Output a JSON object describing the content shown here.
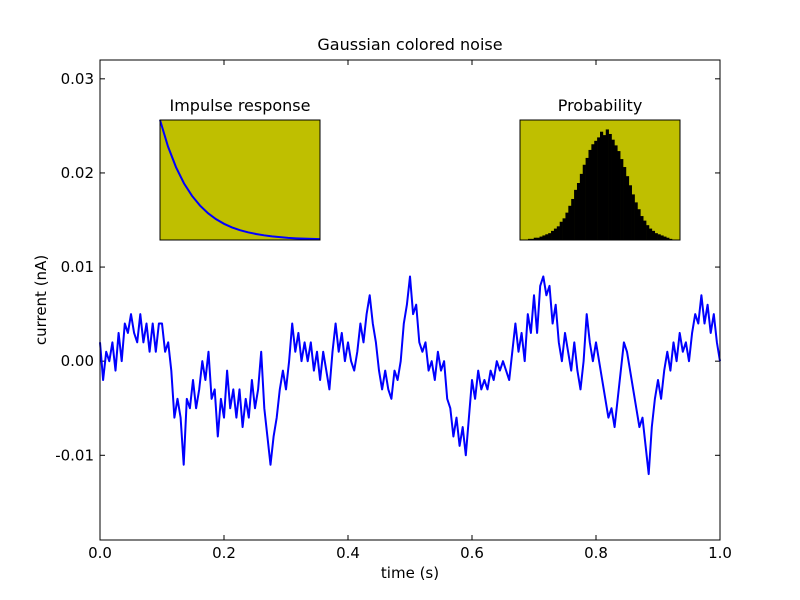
{
  "chart_data": [
    {
      "type": "line",
      "title": "Gaussian colored noise",
      "xlabel": "time (s)",
      "ylabel": "current (nA)",
      "xlim": [
        0.0,
        1.0
      ],
      "ylim": [
        -0.019,
        0.032
      ],
      "xticks": [
        0.0,
        0.2,
        0.4,
        0.6,
        0.8,
        1.0
      ],
      "xtick_labels": [
        "0.0",
        "0.2",
        "0.4",
        "0.6",
        "0.8",
        "1.0"
      ],
      "yticks": [
        -0.01,
        0.0,
        0.01,
        0.02,
        0.03
      ],
      "ytick_labels": [
        "-0.01",
        "0.00",
        "0.01",
        "0.02",
        "0.03"
      ],
      "grid": false,
      "series": [
        {
          "color": "#0000ff",
          "points": [
            [
              0.0,
              0.002
            ],
            [
              0.005,
              -0.002
            ],
            [
              0.01,
              0.001
            ],
            [
              0.015,
              0.0
            ],
            [
              0.02,
              0.002
            ],
            [
              0.025,
              -0.001
            ],
            [
              0.03,
              0.003
            ],
            [
              0.035,
              0.0
            ],
            [
              0.04,
              0.004
            ],
            [
              0.045,
              0.003
            ],
            [
              0.05,
              0.005
            ],
            [
              0.055,
              0.003
            ],
            [
              0.06,
              0.002
            ],
            [
              0.065,
              0.005
            ],
            [
              0.07,
              0.002
            ],
            [
              0.075,
              0.004
            ],
            [
              0.08,
              0.001
            ],
            [
              0.085,
              0.004
            ],
            [
              0.09,
              0.001
            ],
            [
              0.095,
              0.004
            ],
            [
              0.1,
              0.004
            ],
            [
              0.105,
              0.001
            ],
            [
              0.11,
              0.002
            ],
            [
              0.115,
              -0.001
            ],
            [
              0.12,
              -0.006
            ],
            [
              0.125,
              -0.004
            ],
            [
              0.13,
              -0.006
            ],
            [
              0.135,
              -0.011
            ],
            [
              0.14,
              -0.004
            ],
            [
              0.145,
              -0.005
            ],
            [
              0.15,
              -0.002
            ],
            [
              0.155,
              -0.005
            ],
            [
              0.16,
              -0.003
            ],
            [
              0.165,
              0.0
            ],
            [
              0.17,
              -0.002
            ],
            [
              0.175,
              0.001
            ],
            [
              0.18,
              -0.004
            ],
            [
              0.185,
              -0.003
            ],
            [
              0.19,
              -0.008
            ],
            [
              0.195,
              -0.004
            ],
            [
              0.2,
              -0.006
            ],
            [
              0.205,
              -0.001
            ],
            [
              0.21,
              -0.005
            ],
            [
              0.215,
              -0.003
            ],
            [
              0.22,
              -0.006
            ],
            [
              0.225,
              -0.003
            ],
            [
              0.23,
              -0.007
            ],
            [
              0.235,
              -0.004
            ],
            [
              0.24,
              -0.006
            ],
            [
              0.245,
              -0.002
            ],
            [
              0.25,
              -0.005
            ],
            [
              0.255,
              -0.003
            ],
            [
              0.26,
              0.001
            ],
            [
              0.265,
              -0.005
            ],
            [
              0.27,
              -0.008
            ],
            [
              0.275,
              -0.011
            ],
            [
              0.28,
              -0.008
            ],
            [
              0.285,
              -0.006
            ],
            [
              0.29,
              -0.003
            ],
            [
              0.295,
              -0.001
            ],
            [
              0.3,
              -0.003
            ],
            [
              0.305,
              0.0
            ],
            [
              0.31,
              0.004
            ],
            [
              0.315,
              0.001
            ],
            [
              0.32,
              0.003
            ],
            [
              0.325,
              0.0
            ],
            [
              0.33,
              0.002
            ],
            [
              0.335,
              0.0
            ],
            [
              0.34,
              0.002
            ],
            [
              0.345,
              -0.001
            ],
            [
              0.35,
              0.001
            ],
            [
              0.355,
              -0.002
            ],
            [
              0.36,
              0.001
            ],
            [
              0.365,
              -0.001
            ],
            [
              0.37,
              -0.003
            ],
            [
              0.375,
              0.001
            ],
            [
              0.38,
              0.004
            ],
            [
              0.385,
              0.001
            ],
            [
              0.39,
              0.003
            ],
            [
              0.395,
              0.0
            ],
            [
              0.4,
              0.002
            ],
            [
              0.405,
              0.0
            ],
            [
              0.41,
              -0.001
            ],
            [
              0.415,
              0.001
            ],
            [
              0.42,
              0.004
            ],
            [
              0.425,
              0.002
            ],
            [
              0.43,
              0.005
            ],
            [
              0.435,
              0.007
            ],
            [
              0.44,
              0.004
            ],
            [
              0.445,
              0.002
            ],
            [
              0.45,
              -0.001
            ],
            [
              0.455,
              -0.003
            ],
            [
              0.46,
              -0.001
            ],
            [
              0.465,
              -0.003
            ],
            [
              0.47,
              -0.004
            ],
            [
              0.475,
              -0.001
            ],
            [
              0.48,
              -0.002
            ],
            [
              0.485,
              0.0
            ],
            [
              0.49,
              0.004
            ],
            [
              0.495,
              0.006
            ],
            [
              0.5,
              0.009
            ],
            [
              0.505,
              0.005
            ],
            [
              0.51,
              0.006
            ],
            [
              0.515,
              0.002
            ],
            [
              0.52,
              0.001
            ],
            [
              0.525,
              0.002
            ],
            [
              0.53,
              -0.001
            ],
            [
              0.535,
              0.0
            ],
            [
              0.54,
              -0.002
            ],
            [
              0.545,
              0.001
            ],
            [
              0.55,
              -0.001
            ],
            [
              0.555,
              0.0
            ],
            [
              0.56,
              -0.004
            ],
            [
              0.565,
              -0.005
            ],
            [
              0.57,
              -0.008
            ],
            [
              0.575,
              -0.006
            ],
            [
              0.58,
              -0.009
            ],
            [
              0.585,
              -0.007
            ],
            [
              0.59,
              -0.01
            ],
            [
              0.595,
              -0.006
            ],
            [
              0.6,
              -0.002
            ],
            [
              0.605,
              -0.004
            ],
            [
              0.61,
              -0.001
            ],
            [
              0.615,
              -0.003
            ],
            [
              0.62,
              -0.002
            ],
            [
              0.625,
              -0.003
            ],
            [
              0.63,
              -0.001
            ],
            [
              0.635,
              -0.002
            ],
            [
              0.64,
              0.0
            ],
            [
              0.645,
              -0.001
            ],
            [
              0.65,
              0.0
            ],
            [
              0.655,
              -0.001
            ],
            [
              0.66,
              -0.002
            ],
            [
              0.665,
              0.001
            ],
            [
              0.67,
              0.004
            ],
            [
              0.675,
              0.001
            ],
            [
              0.68,
              0.003
            ],
            [
              0.685,
              0.0
            ],
            [
              0.69,
              0.005
            ],
            [
              0.695,
              0.003
            ],
            [
              0.7,
              0.007
            ],
            [
              0.705,
              0.003
            ],
            [
              0.71,
              0.008
            ],
            [
              0.715,
              0.009
            ],
            [
              0.72,
              0.007
            ],
            [
              0.725,
              0.008
            ],
            [
              0.73,
              0.004
            ],
            [
              0.735,
              0.006
            ],
            [
              0.74,
              0.002
            ],
            [
              0.745,
              0.0
            ],
            [
              0.75,
              0.003
            ],
            [
              0.755,
              0.001
            ],
            [
              0.76,
              -0.001
            ],
            [
              0.765,
              0.002
            ],
            [
              0.77,
              -0.001
            ],
            [
              0.775,
              -0.003
            ],
            [
              0.78,
              0.0
            ],
            [
              0.785,
              0.005
            ],
            [
              0.79,
              0.002
            ],
            [
              0.795,
              0.0
            ],
            [
              0.8,
              0.002
            ],
            [
              0.805,
              0.0
            ],
            [
              0.81,
              -0.002
            ],
            [
              0.815,
              -0.004
            ],
            [
              0.82,
              -0.006
            ],
            [
              0.825,
              -0.005
            ],
            [
              0.83,
              -0.007
            ],
            [
              0.835,
              -0.004
            ],
            [
              0.84,
              -0.001
            ],
            [
              0.845,
              0.002
            ],
            [
              0.85,
              0.001
            ],
            [
              0.855,
              -0.001
            ],
            [
              0.86,
              -0.003
            ],
            [
              0.865,
              -0.005
            ],
            [
              0.87,
              -0.007
            ],
            [
              0.875,
              -0.006
            ],
            [
              0.88,
              -0.009
            ],
            [
              0.885,
              -0.012
            ],
            [
              0.89,
              -0.007
            ],
            [
              0.895,
              -0.004
            ],
            [
              0.9,
              -0.002
            ],
            [
              0.905,
              -0.004
            ],
            [
              0.91,
              -0.001
            ],
            [
              0.915,
              0.001
            ],
            [
              0.92,
              -0.001
            ],
            [
              0.925,
              0.002
            ],
            [
              0.93,
              0.0
            ],
            [
              0.935,
              0.003
            ],
            [
              0.94,
              0.001
            ],
            [
              0.945,
              0.002
            ],
            [
              0.95,
              0.0
            ],
            [
              0.955,
              0.003
            ],
            [
              0.96,
              0.005
            ],
            [
              0.965,
              0.004
            ],
            [
              0.97,
              0.007
            ],
            [
              0.975,
              0.004
            ],
            [
              0.98,
              0.006
            ],
            [
              0.985,
              0.003
            ],
            [
              0.99,
              0.005
            ],
            [
              0.995,
              0.002
            ],
            [
              1.0,
              0.0
            ]
          ]
        }
      ]
    },
    {
      "type": "line",
      "title": "Impulse response",
      "xlabel": "",
      "ylabel": "",
      "background": "#bfbf00",
      "axes_ticks": false,
      "series": [
        {
          "color": "#0000ff",
          "points": [
            [
              0.0,
              1.0
            ],
            [
              0.05,
              0.779
            ],
            [
              0.1,
              0.607
            ],
            [
              0.15,
              0.472
            ],
            [
              0.2,
              0.368
            ],
            [
              0.25,
              0.287
            ],
            [
              0.3,
              0.223
            ],
            [
              0.35,
              0.174
            ],
            [
              0.4,
              0.135
            ],
            [
              0.45,
              0.105
            ],
            [
              0.5,
              0.082
            ],
            [
              0.55,
              0.064
            ],
            [
              0.6,
              0.05
            ],
            [
              0.65,
              0.039
            ],
            [
              0.7,
              0.03
            ],
            [
              0.75,
              0.024
            ],
            [
              0.8,
              0.018
            ],
            [
              0.85,
              0.014
            ],
            [
              0.9,
              0.011
            ],
            [
              0.95,
              0.009
            ],
            [
              1.0,
              0.007
            ]
          ]
        }
      ]
    },
    {
      "type": "bar",
      "title": "Probability",
      "xlabel": "",
      "ylabel": "",
      "background": "#bfbf00",
      "bar_color": "#000000",
      "axes_ticks": false,
      "values": [
        0.01,
        0.01,
        0.02,
        0.02,
        0.03,
        0.04,
        0.05,
        0.06,
        0.08,
        0.1,
        0.12,
        0.16,
        0.19,
        0.24,
        0.3,
        0.36,
        0.44,
        0.5,
        0.58,
        0.66,
        0.72,
        0.79,
        0.84,
        0.87,
        0.9,
        0.95,
        0.92,
        0.97,
        0.93,
        0.88,
        0.83,
        0.78,
        0.71,
        0.64,
        0.56,
        0.48,
        0.4,
        0.33,
        0.27,
        0.21,
        0.17,
        0.13,
        0.1,
        0.08,
        0.06,
        0.05,
        0.04,
        0.03,
        0.02,
        0.01
      ]
    }
  ]
}
